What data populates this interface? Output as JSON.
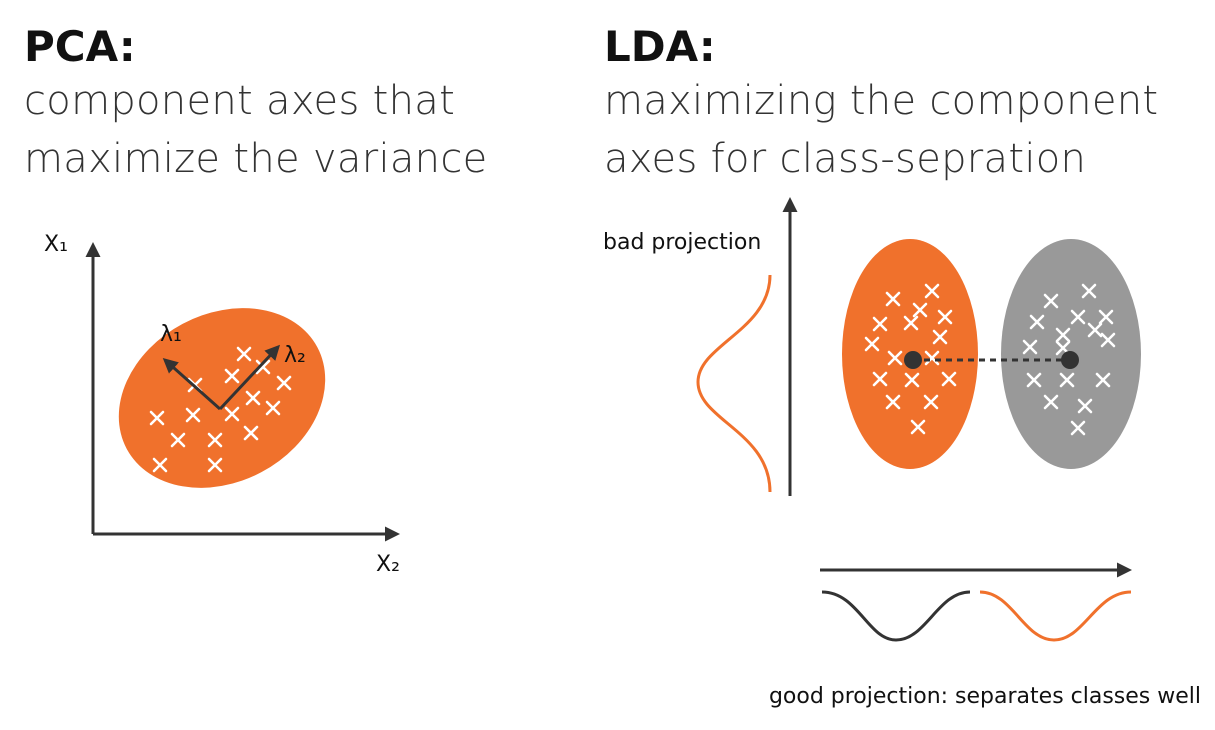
{
  "pca": {
    "title": "PCA:",
    "subtitle_line1": "component axes that",
    "subtitle_line2": "maximize the variance",
    "axis_x": "X₂",
    "axis_y": "X₁",
    "lambda1": "λ₁",
    "lambda2": "λ₂"
  },
  "lda": {
    "title": "LDA:",
    "subtitle_line1": "maximizing the component",
    "subtitle_line2": "axes for class-sepration",
    "bad_label": "bad projection",
    "good_label": "good projection: separates classes well"
  },
  "colors": {
    "orange": "#f0712c",
    "gray": "#999999",
    "dark": "#333333",
    "marker": "#ffffff"
  },
  "icons": {
    "marker": "x-mark-icon",
    "centroid": "centroid-dot-icon"
  }
}
